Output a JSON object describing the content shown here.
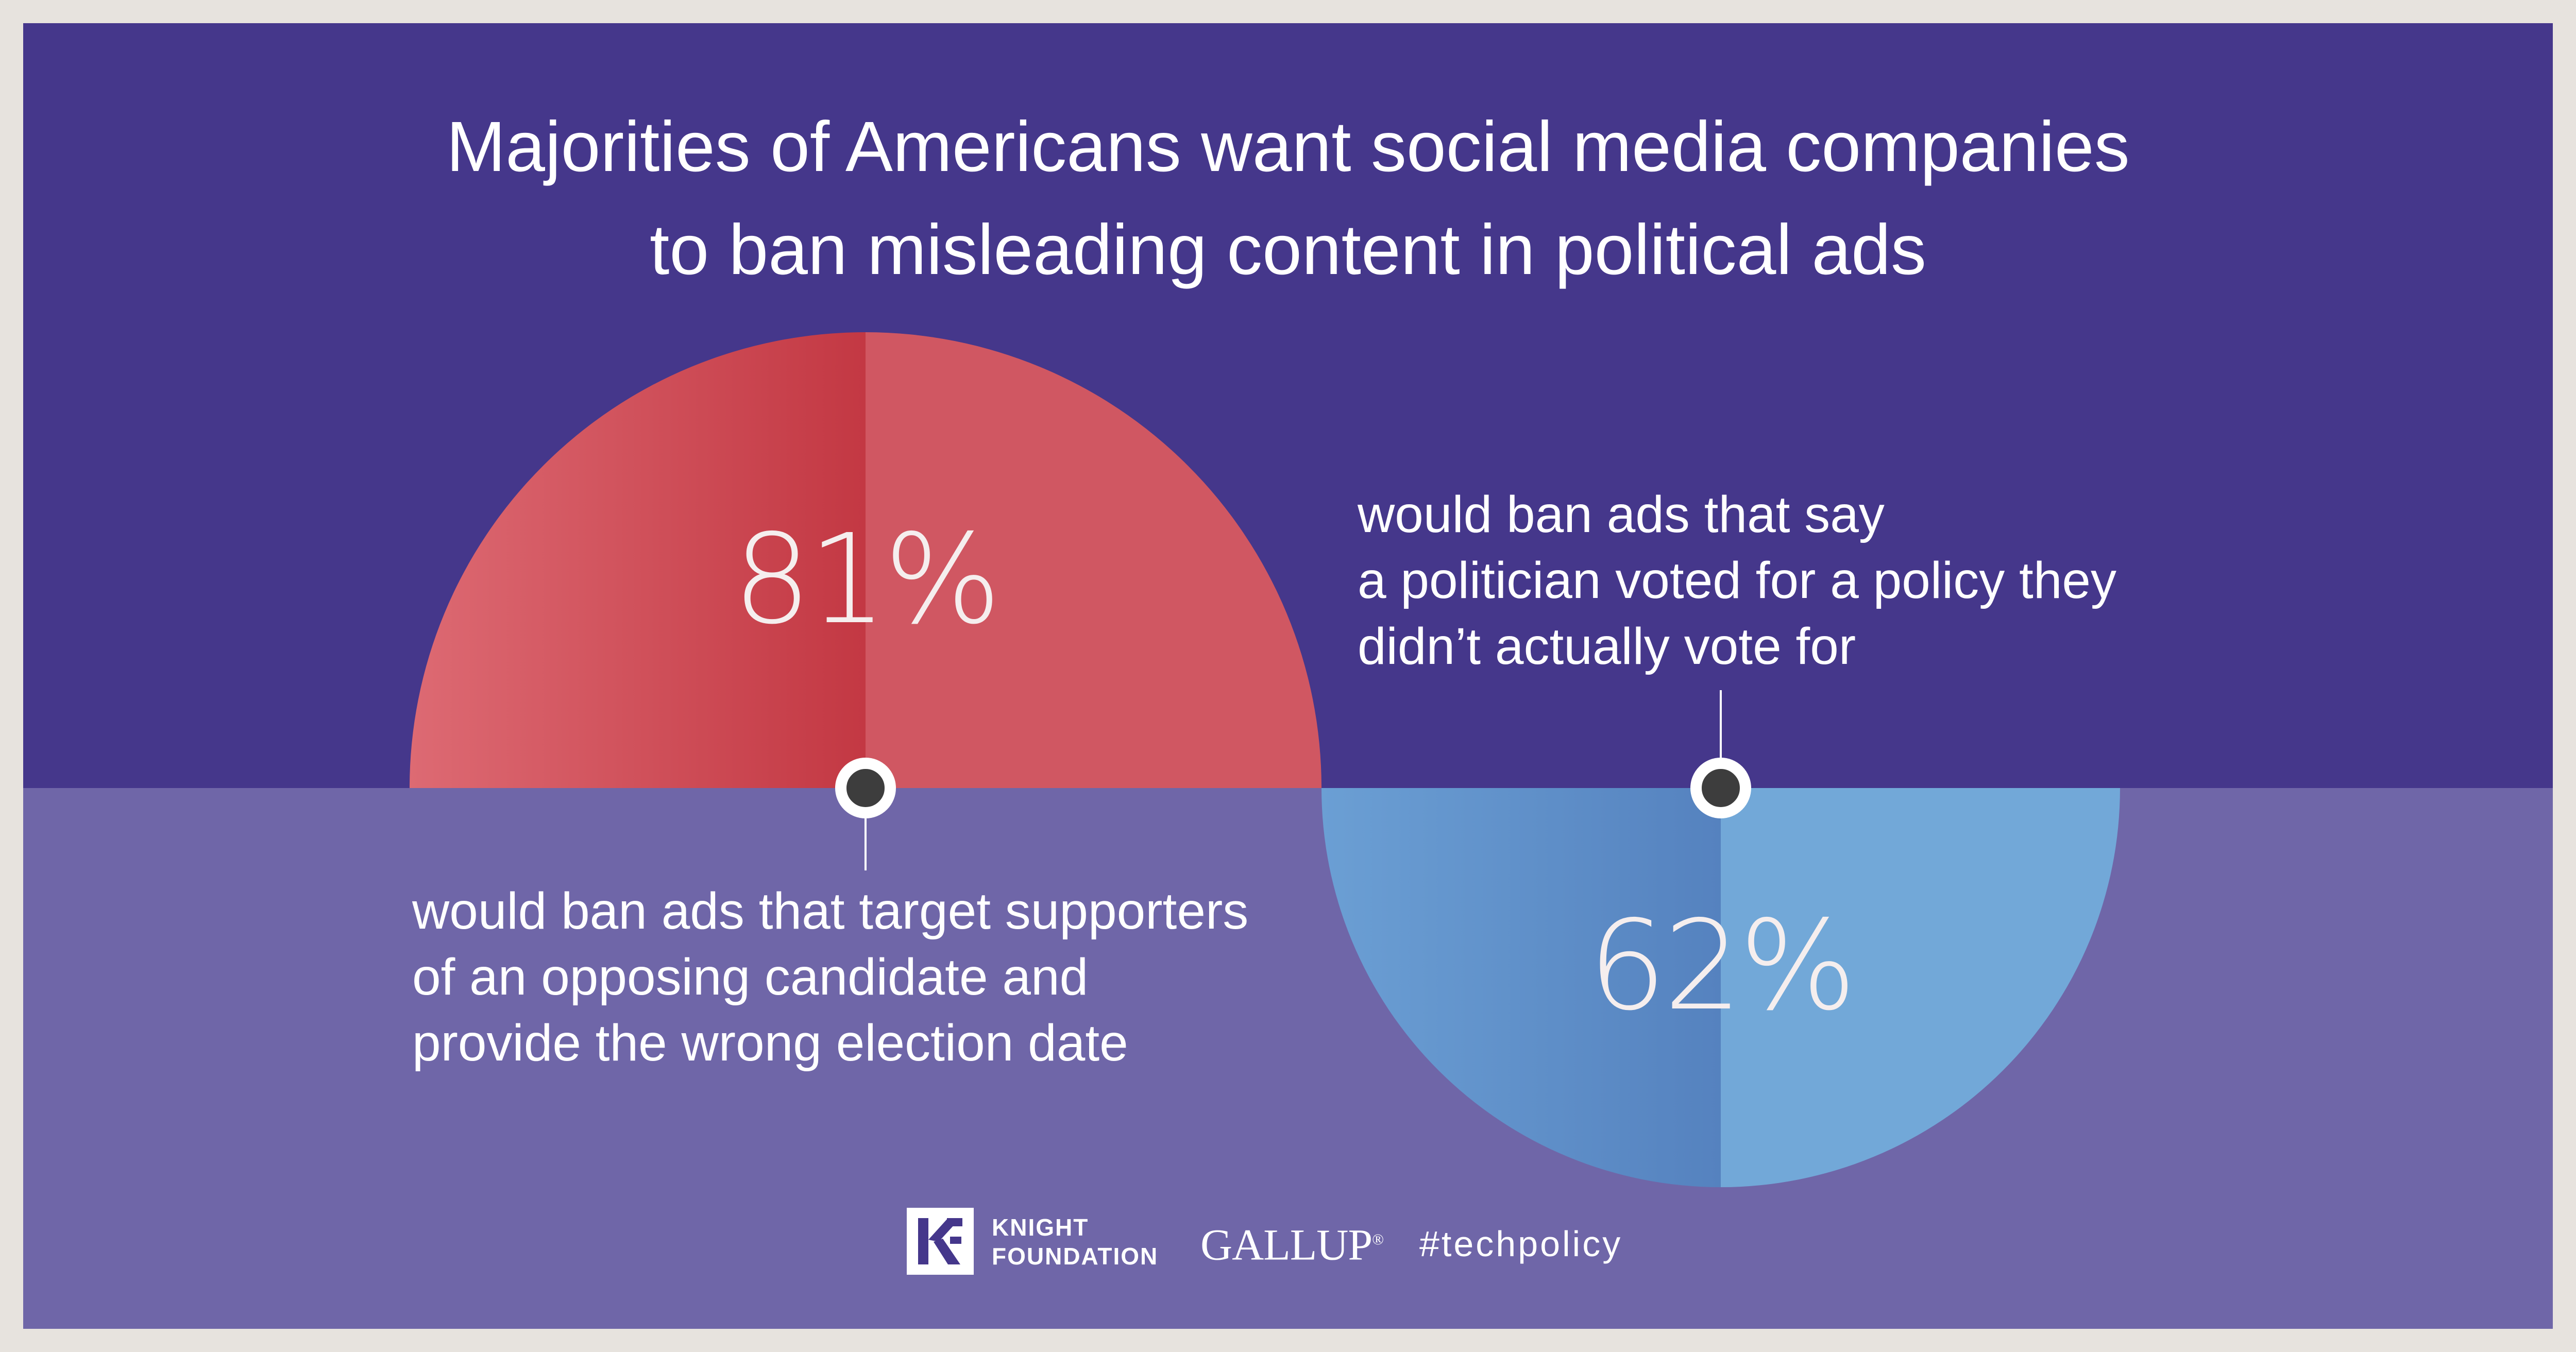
{
  "title": {
    "line1": "Majorities of Americans want social media companies",
    "line2": "to ban misleading content in political ads"
  },
  "stats": [
    {
      "value": "81%",
      "percent": 81,
      "color": "#d05762",
      "label_lines": [
        "would ban ads that target supporters",
        "of an opposing candidate and",
        "provide the wrong election date"
      ]
    },
    {
      "value": "62%",
      "percent": 62,
      "color": "#72a8d8",
      "label_lines": [
        "would ban ads that say",
        "a politician voted for a policy they",
        "didn’t actually vote for"
      ]
    }
  ],
  "footer": {
    "knight_line1": "KNIGHT",
    "knight_line2": "FOUNDATION",
    "gallup": "GALLUP",
    "gallup_mark": "®",
    "hashtag": "#techpolicy"
  },
  "colors": {
    "top_background": "#45378b",
    "bottom_background": "#6f66a8",
    "outer_border": "#e7e3de"
  }
}
